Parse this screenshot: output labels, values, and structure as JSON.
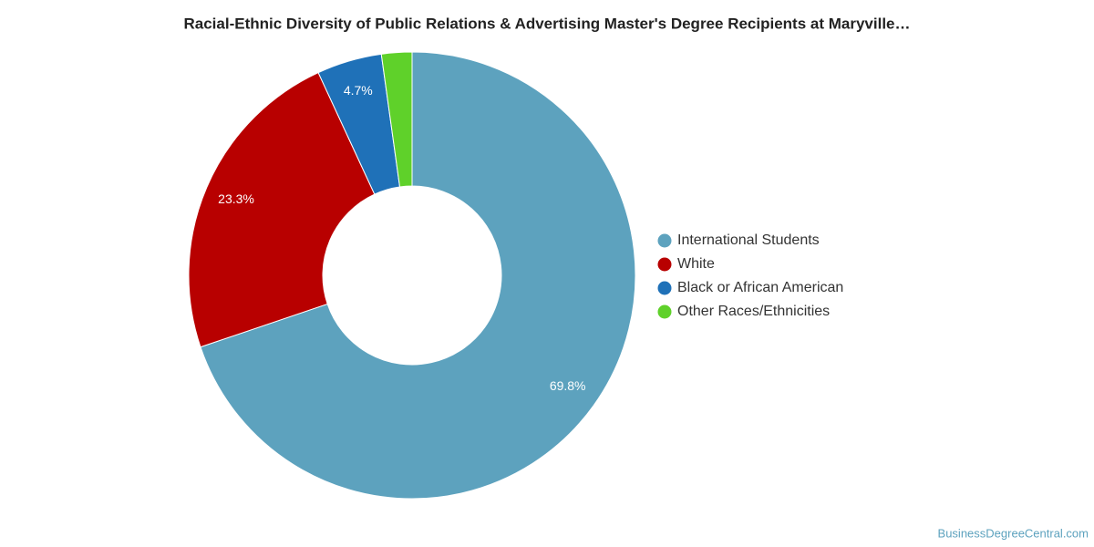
{
  "chart_data": {
    "type": "donut",
    "title": "Racial-Ethnic Diversity of Public Relations & Advertising Master's Degree Recipients at Maryville…",
    "categories": [
      "International Students",
      "White",
      "Black or African American",
      "Other Races/Ethnicities"
    ],
    "values": [
      69.8,
      23.3,
      4.7,
      2.2
    ],
    "value_labels": [
      "69.8%",
      "23.3%",
      "4.7%",
      null
    ],
    "colors": [
      "#5da2be",
      "#b80000",
      "#1f71b8",
      "#5fd12a"
    ],
    "legend": "right"
  },
  "footer": "BusinessDegreeCentral.com"
}
